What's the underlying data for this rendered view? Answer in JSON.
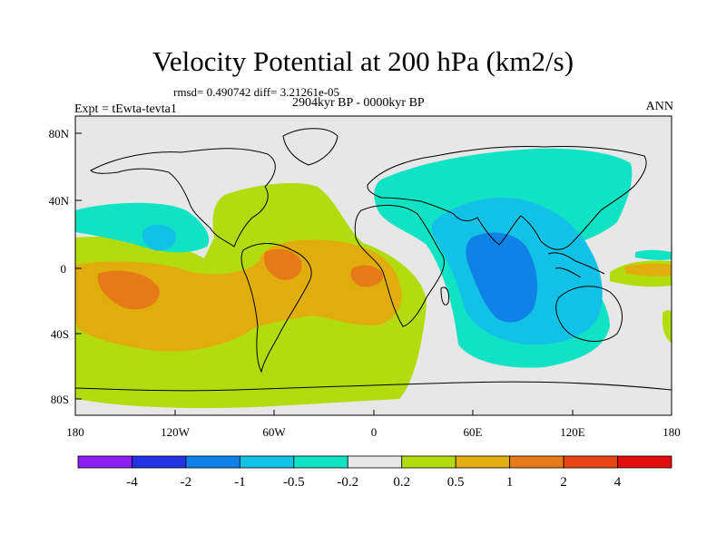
{
  "title": "Velocity Potential at 200 hPa (km2/s)",
  "stats_text": "rmsd= 0.490742 diff= 3.21261e-05",
  "period_text": "2904kyr BP - 0000kyr BP",
  "experiment_text": "Expt = tEwta-tevta1",
  "season_text": "ANN",
  "axes": {
    "lat_labels": [
      "80N",
      "40N",
      "0",
      "40S",
      "80S"
    ],
    "lon_labels": [
      "180",
      "120W",
      "60W",
      "0",
      "60E",
      "120E",
      "180"
    ]
  },
  "colorbar": {
    "colors": [
      "#8b1ff2",
      "#2432e6",
      "#0f82e8",
      "#12c2e6",
      "#10e3c4",
      "#e7e7e7",
      "#b3dc0f",
      "#e1ad0d",
      "#e67a16",
      "#e74413",
      "#e40d0d"
    ],
    "labels": [
      "-4",
      "-2",
      "-1",
      "-0.5",
      "-0.2",
      "0.2",
      "0.5",
      "1",
      "2",
      "4"
    ]
  },
  "palette": {
    "neutral": "#e7e7e7",
    "teal": "#10e3c4",
    "cyan": "#12c2e6",
    "blue": "#0f82e8",
    "yellowgreen": "#b3dc0f",
    "amber": "#e1ad0d",
    "orange": "#e67a16",
    "red": "#e74413"
  }
}
